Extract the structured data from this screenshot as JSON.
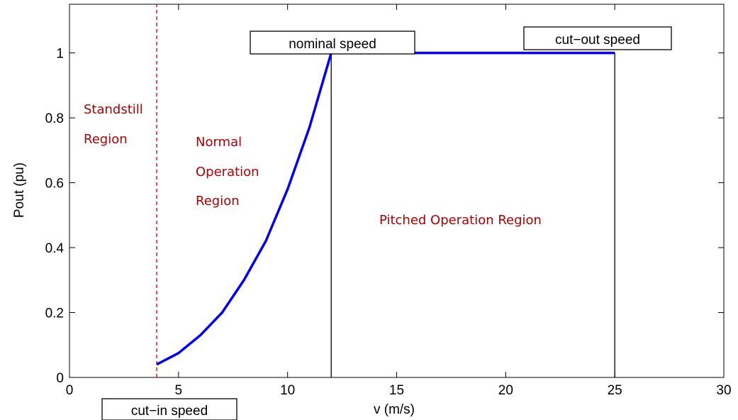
{
  "chart_data": {
    "type": "line",
    "title": "",
    "xlabel": "v (m/s)",
    "ylabel": "Pout (pu)",
    "xlim": [
      0,
      30
    ],
    "ylim": [
      0,
      1.15
    ],
    "xticks": [
      0,
      5,
      10,
      15,
      20,
      25,
      30
    ],
    "yticks": [
      0,
      0.2,
      0.4,
      0.6,
      0.8,
      1
    ],
    "xtick_labels": [
      "0",
      "5",
      "10",
      "15",
      "20",
      "25",
      "30"
    ],
    "ytick_labels": [
      "0",
      "0.2",
      "0.4",
      "0.6",
      "0.8",
      "1"
    ],
    "grid": false,
    "series": [
      {
        "color": "#0000ff",
        "x": [
          4,
          5,
          6,
          7,
          8,
          9,
          10,
          11,
          12,
          13,
          14,
          15,
          16,
          17,
          18,
          19,
          20,
          21,
          22,
          23,
          24,
          25
        ],
        "y": [
          0.04,
          0.075,
          0.13,
          0.2,
          0.3,
          0.42,
          0.58,
          0.77,
          1,
          1,
          1,
          1,
          1,
          1,
          1,
          1,
          1,
          1,
          1,
          1,
          1,
          1
        ]
      }
    ],
    "vlines": [
      {
        "x": 4,
        "style": "dashed",
        "color": "#c00000"
      },
      {
        "x": 12,
        "style": "solid",
        "color": "#000000"
      },
      {
        "x": 25,
        "style": "solid",
        "color": "#000000"
      }
    ],
    "boxed_annotations": [
      {
        "text": "nominal speed"
      },
      {
        "text": "cut−out speed"
      },
      {
        "text": "cut−in speed"
      }
    ],
    "region_labels": {
      "standstill": [
        "Standstill",
        "Region"
      ],
      "normal": [
        "Normal",
        "Operation",
        "Region"
      ],
      "pitched": [
        "Pitched Operation Region"
      ]
    },
    "region_color": "#b00000"
  }
}
